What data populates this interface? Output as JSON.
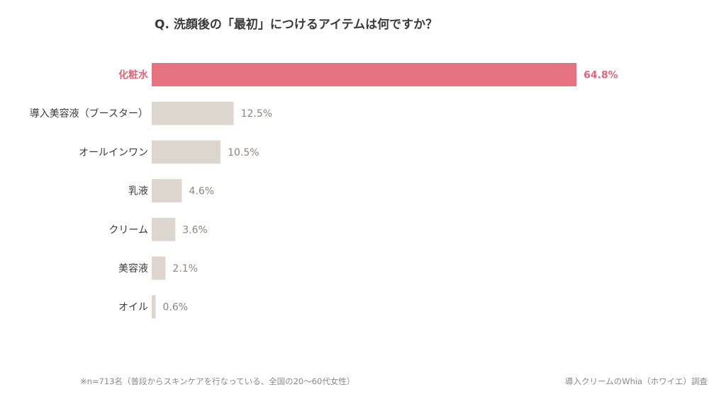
{
  "title": "Q. 洗顔後の「最初」につけるアイテムは何ですか？",
  "footnote": "※n=713名（普段からスキンケアを行なっている、全国の20〜60代女性）",
  "source": "導入クリームのWhia（ホワイエ）調査",
  "colors": {
    "highlight_bar": "#e5727e",
    "highlight_text": "#e0667a",
    "bar": "#ddd6cf",
    "label_text": "#3a3a3a",
    "value_text": "#8c8580"
  },
  "chart_data": {
    "type": "bar",
    "orientation": "horizontal",
    "categories": [
      "化粧水",
      "導入美容液（ブースター）",
      "オールインワン",
      "乳液",
      "クリーム",
      "美容液",
      "オイル"
    ],
    "values": [
      64.8,
      12.5,
      10.5,
      4.6,
      3.6,
      2.1,
      0.6
    ],
    "value_labels": [
      "64.8%",
      "12.5%",
      "10.5%",
      "4.6%",
      "3.6%",
      "2.1%",
      "0.6%"
    ],
    "highlight_index": 0,
    "unit": "%",
    "xlim": [
      0,
      65
    ],
    "grid": false
  }
}
